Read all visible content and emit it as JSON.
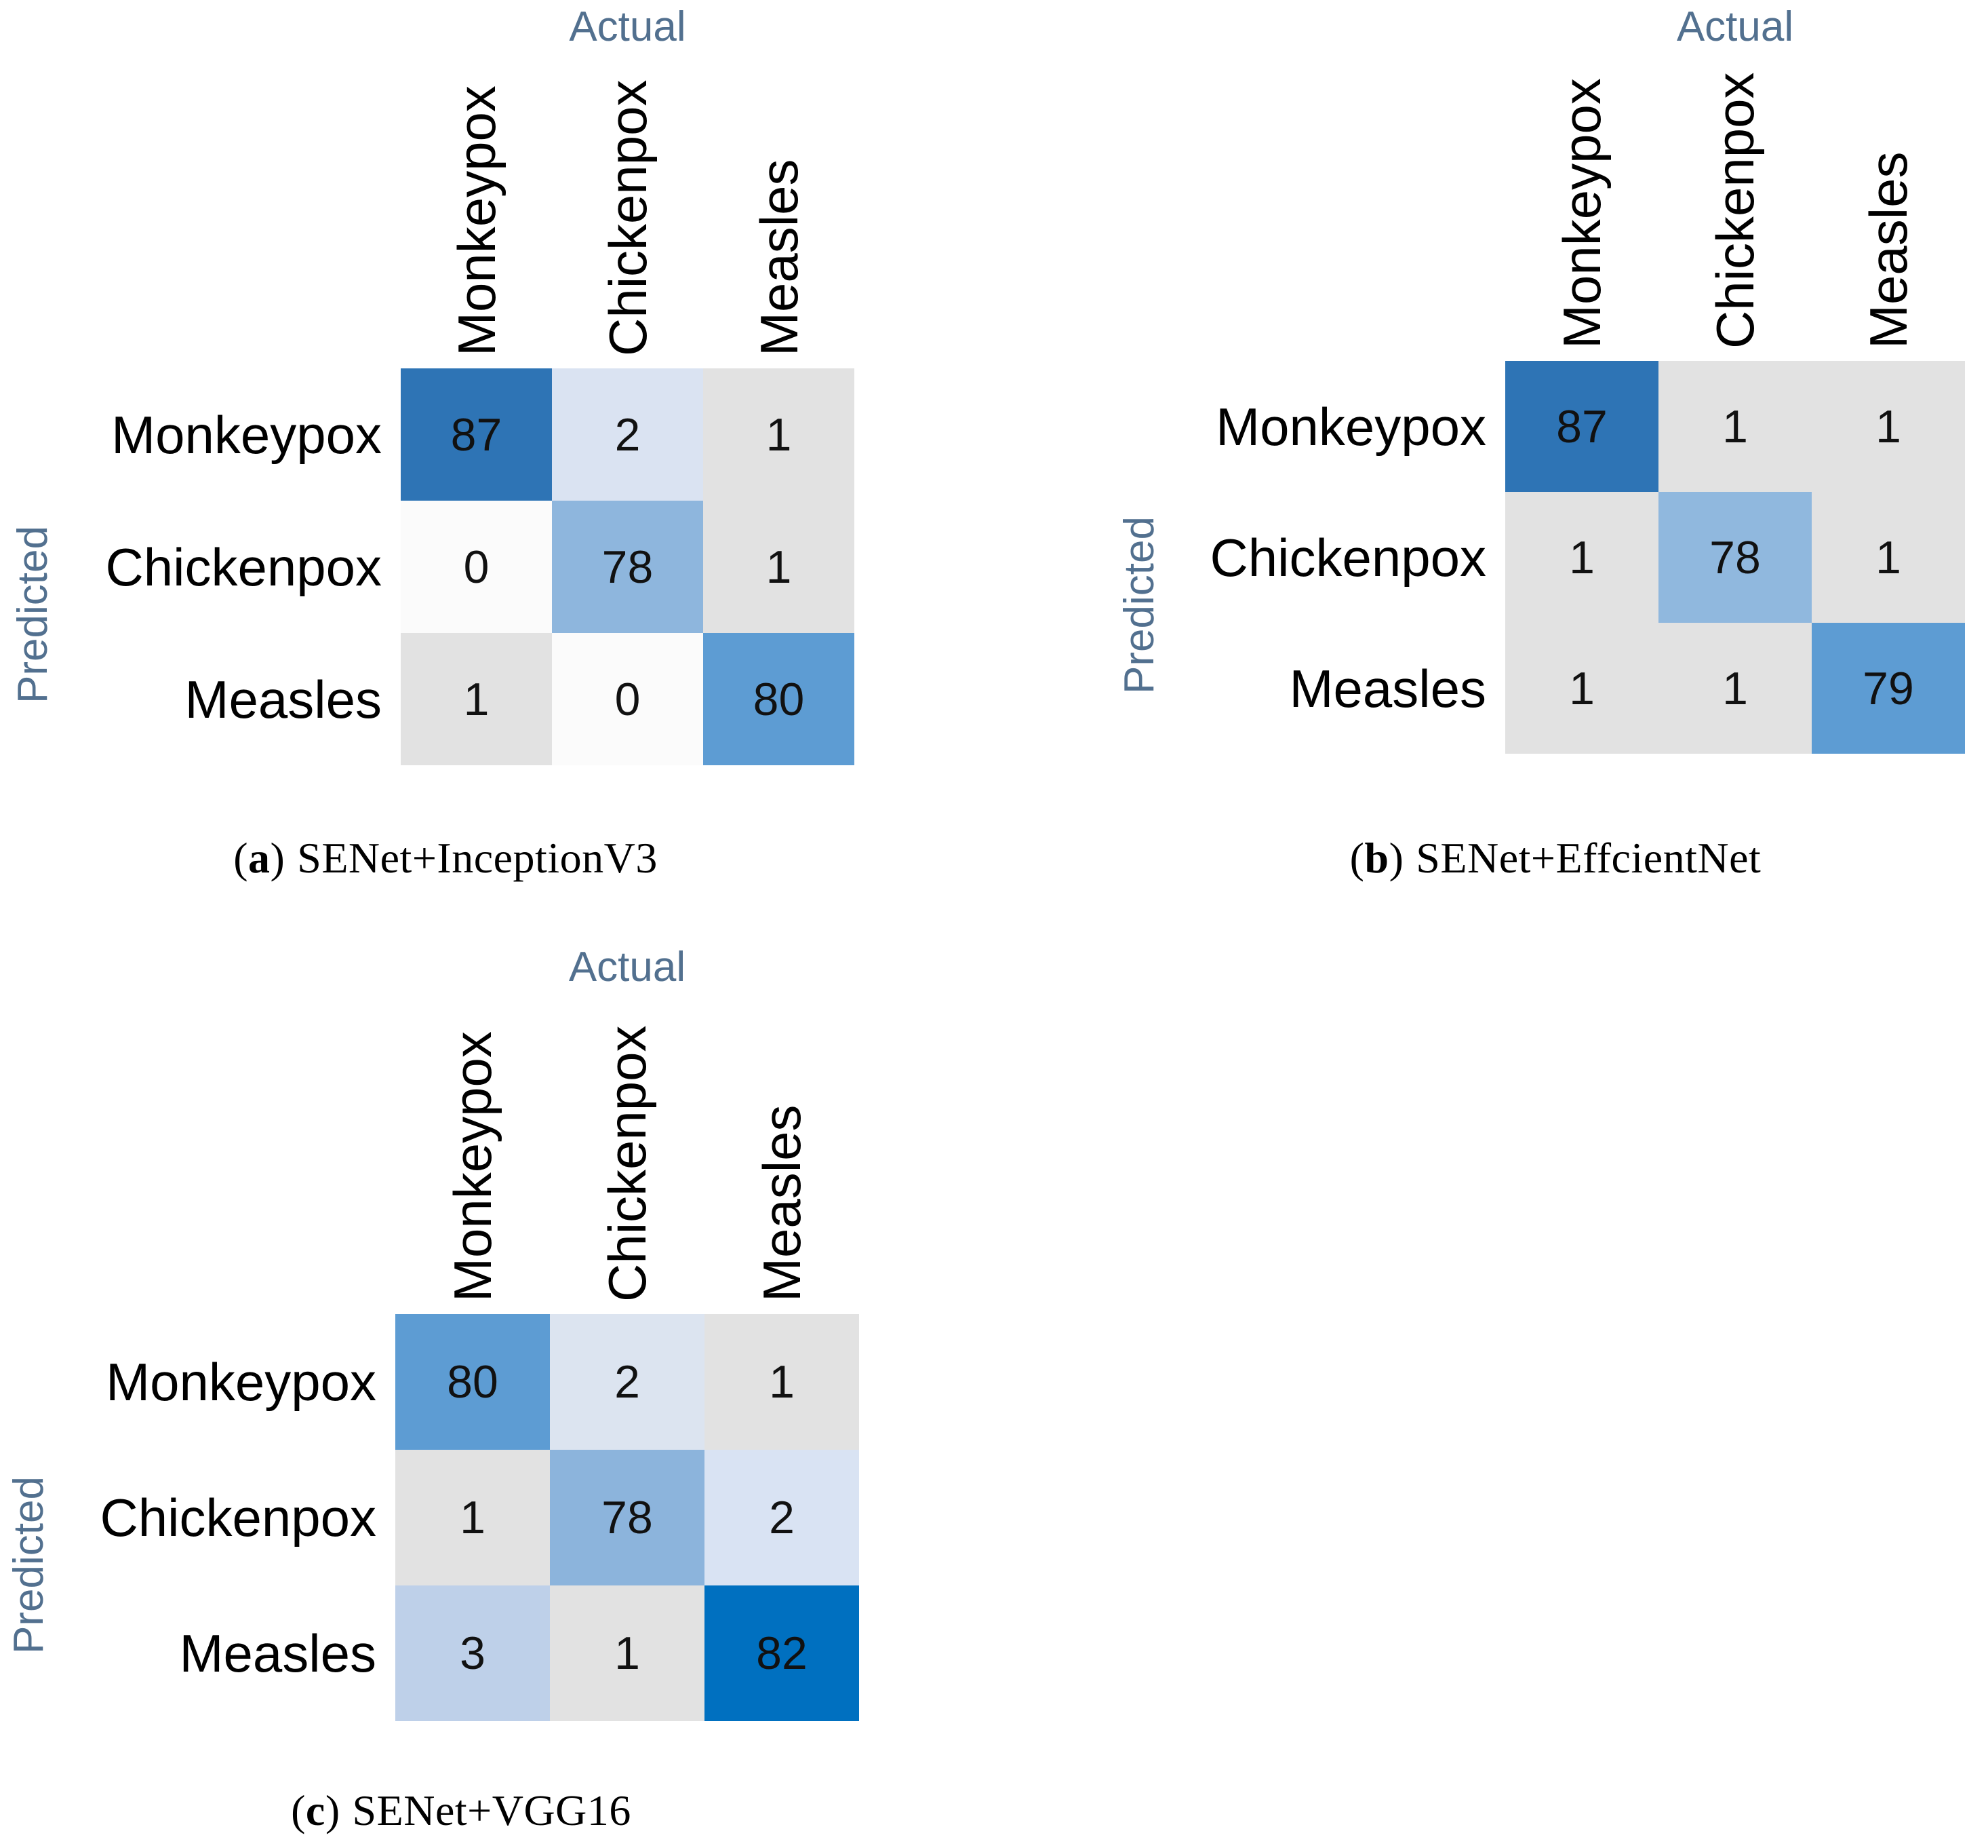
{
  "figure": {
    "axis_top_label": "Actual",
    "axis_left_label": "Predicted",
    "class_names": [
      "Monkeypox",
      "Chickenpox",
      "Measles"
    ]
  },
  "colors": {
    "background": "#ffffff",
    "axis_label_text": "#52708f",
    "class_label_text": "#000000",
    "cell_value_text": "#111111",
    "caption_text": "#000000",
    "diagonal_dark_blue": "#2e74b5",
    "diagonal_medium_blue": "#5d9cd3",
    "diagonal_light_blue": "#8eb6dd",
    "diagonal_vivid_blue": "#0070c0",
    "offdiagonal_gray": "#e2e2e2",
    "offdiagonal_light_blue": "#dae3f2",
    "offdiagonal_near_white": "#fbfbfb"
  },
  "caption_punctuation": {
    "open": "(",
    "close": ")"
  },
  "chart_data": [
    {
      "type": "heatmap",
      "title": "(a) SENet+InceptionV3",
      "caption_letter": "a",
      "caption_model": "SENet+InceptionV3",
      "xlabel": "Actual",
      "ylabel": "Predicted",
      "x_categories": [
        "Monkeypox",
        "Chickenpox",
        "Measles"
      ],
      "y_categories": [
        "Monkeypox",
        "Chickenpox",
        "Measles"
      ],
      "values": [
        [
          87,
          2,
          1
        ],
        [
          0,
          78,
          1
        ],
        [
          1,
          0,
          80
        ]
      ],
      "cell_colors": [
        [
          "#2e74b5",
          "#dae3f2",
          "#e2e2e2"
        ],
        [
          "#fbfbfb",
          "#8eb6dd",
          "#e2e2e2"
        ],
        [
          "#e2e2e2",
          "#fbfbfb",
          "#5d9cd3"
        ]
      ]
    },
    {
      "type": "heatmap",
      "title": "(b) SENet+EffcientNet",
      "caption_letter": "b",
      "caption_model": "SENet+EffcientNet",
      "xlabel": "Actual",
      "ylabel": "Predicted",
      "x_categories": [
        "Monkeypox",
        "Chickenpox",
        "Measles"
      ],
      "y_categories": [
        "Monkeypox",
        "Chickenpox",
        "Measles"
      ],
      "values": [
        [
          87,
          1,
          1
        ],
        [
          1,
          78,
          1
        ],
        [
          1,
          1,
          79
        ]
      ],
      "cell_colors": [
        [
          "#2e74b5",
          "#e2e2e2",
          "#e2e2e2"
        ],
        [
          "#e2e2e2",
          "#90b8de",
          "#e2e2e2"
        ],
        [
          "#e2e2e2",
          "#e2e2e2",
          "#5d9cd3"
        ]
      ]
    },
    {
      "type": "heatmap",
      "title": "(c) SENet+VGG16",
      "caption_letter": "c",
      "caption_model": "SENet+VGG16",
      "xlabel": "Actual",
      "ylabel": "Predicted",
      "x_categories": [
        "Monkeypox",
        "Chickenpox",
        "Measles"
      ],
      "y_categories": [
        "Monkeypox",
        "Chickenpox",
        "Measles"
      ],
      "values": [
        [
          80,
          2,
          1
        ],
        [
          1,
          78,
          2
        ],
        [
          3,
          1,
          82
        ]
      ],
      "cell_colors": [
        [
          "#5d9cd3",
          "#dce4f0",
          "#e2e2e2"
        ],
        [
          "#e2e2e2",
          "#8cb4dc",
          "#d9e3f3"
        ],
        [
          "#bed0e9",
          "#e2e2e2",
          "#0070c0"
        ]
      ]
    }
  ]
}
